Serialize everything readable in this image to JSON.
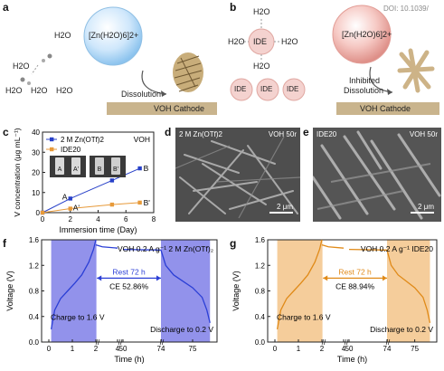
{
  "panels": {
    "a": {
      "label": "a",
      "molecules": [
        "H2O",
        "H2O",
        "H2O",
        "H2O",
        "H2O"
      ],
      "ion": "[Zn(H2O)6]2+",
      "process": "Dissolution",
      "substrate": "VOH Cathode"
    },
    "b": {
      "label": "b",
      "doi": "DOI: 10.1039/",
      "center": "IDE",
      "ligands": [
        "H2O",
        "H2O",
        "H2O",
        "H2O"
      ],
      "row": [
        "IDE",
        "IDE",
        "IDE"
      ],
      "ion": "[Zn(H2O)6]2+",
      "process_line1": "Inhibited",
      "process_line2": "Dissolution",
      "substrate": "VOH Cathode"
    },
    "c": {
      "label": "c",
      "tag": "VOH",
      "inset_labels": [
        "A",
        "A'",
        "B",
        "B'"
      ],
      "point_labels": [
        "A",
        "A'",
        "B",
        "B'"
      ]
    },
    "d": {
      "label": "d",
      "left": "2 M Zn(OTf)2",
      "right": "VOH 50r",
      "scale": "2 μm"
    },
    "e": {
      "label": "e",
      "left": "IDE20",
      "right": "VOH 50r",
      "scale": "2 μm"
    },
    "f": {
      "label": "f",
      "title": "VOH 0.2 A g⁻¹ 2 M Zn(OTf)₂",
      "rest": "Rest 72 h",
      "ce": "CE 52.86%",
      "charge": "Charge to 1.6 V",
      "discharge": "Discharge to 0.2 V",
      "color": "#2b3fd6",
      "shade": "#7f7fe8"
    },
    "g": {
      "label": "g",
      "title": "VOH 0.2 A g⁻¹ IDE20",
      "rest": "Rest 72 h",
      "ce": "CE 88.94%",
      "charge": "Charge to 1.6 V",
      "discharge": "Discharge to 0.2 V",
      "color": "#e08a18",
      "shade": "#f3c48a"
    }
  },
  "chart_data": [
    {
      "type": "line",
      "panel": "c",
      "xlabel": "Immersion time (Day)",
      "ylabel": "V concentration (μg mL⁻¹)",
      "xlim": [
        0,
        8
      ],
      "ylim": [
        0,
        40
      ],
      "xticks": [
        0,
        2,
        4,
        6,
        8
      ],
      "yticks": [
        0,
        10,
        20,
        30,
        40
      ],
      "legend_placement": "top-left",
      "series": [
        {
          "name": "2 M Zn(OTf)2",
          "color": "#2740c8",
          "marker": "square",
          "x": [
            0,
            2,
            5,
            7
          ],
          "y": [
            0,
            7,
            16,
            22
          ]
        },
        {
          "name": "IDE20",
          "color": "#e79a3a",
          "marker": "square",
          "x": [
            0,
            2,
            5,
            7
          ],
          "y": [
            0,
            2,
            4,
            5
          ]
        }
      ]
    },
    {
      "type": "line",
      "panel": "f",
      "xlabel": "Time (h)",
      "ylabel": "Voltage (V)",
      "ylim": [
        0,
        1.6
      ],
      "yticks": [
        0.0,
        0.4,
        0.8,
        1.2,
        1.6
      ],
      "xticks": [
        "0",
        "1",
        "2",
        "4",
        "50",
        "74",
        "75"
      ],
      "note": "broken time axis; rest segment between 2 h and 74 h"
    },
    {
      "type": "line",
      "panel": "g",
      "xlabel": "Time (h)",
      "ylabel": "Voltage (V)",
      "ylim": [
        0,
        1.6
      ],
      "yticks": [
        0.0,
        0.4,
        0.8,
        1.2,
        1.6
      ],
      "xticks": [
        "0",
        "1",
        "2",
        "4",
        "50",
        "74",
        "75"
      ],
      "note": "broken time axis; rest segment between 2 h and 74 h"
    }
  ]
}
